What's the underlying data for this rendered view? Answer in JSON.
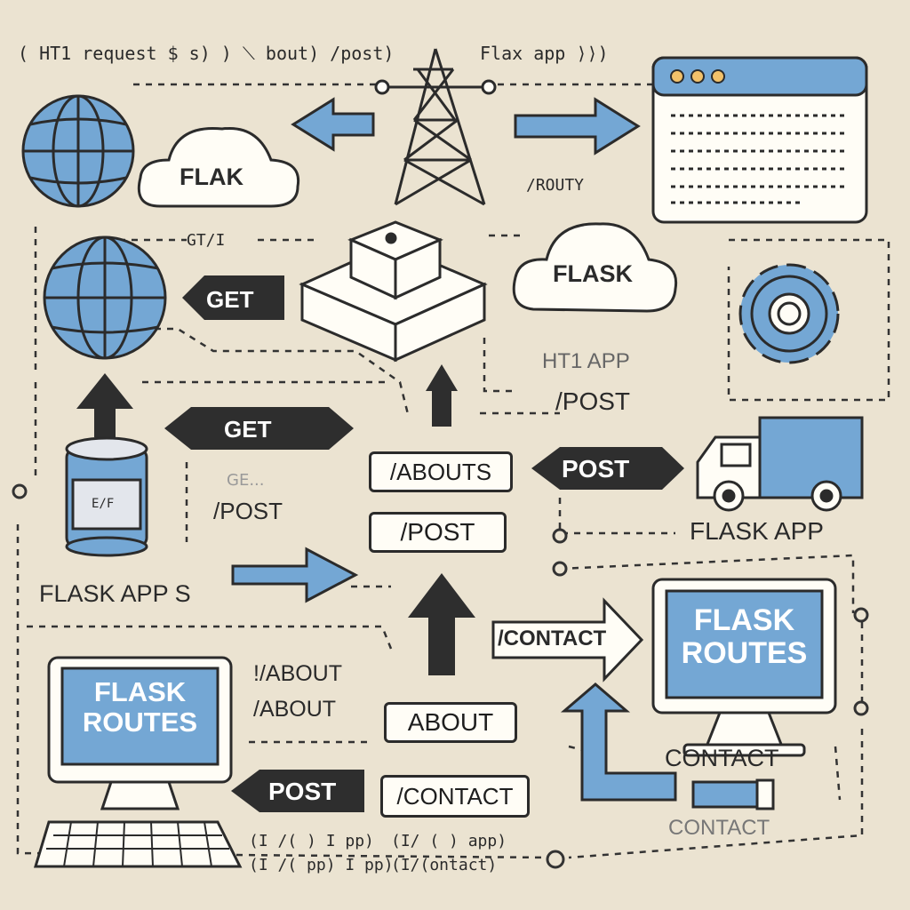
{
  "top": {
    "request_note": "( HT1 request $ s) ) ⟍ bout) /post)",
    "flask_app_note": "Flax app  ⟩⟩)"
  },
  "cloud_left": {
    "label": "FLAK"
  },
  "cloud_right": {
    "label": "FLASK"
  },
  "route_note": "/ROUTY",
  "gt_note": "GT/I",
  "arrows": {
    "get_top": "GET",
    "get_mid": "GET",
    "post_right": "POST",
    "post_bottom": "POST"
  },
  "ht_app_note": "HT1 APP",
  "post_note_right": "/POST",
  "post_note_left": "/POST",
  "get_faint": "GE...",
  "jar_label": "E/F",
  "badges": {
    "abouts": "/ABOUTS",
    "post": "/POST",
    "contact_arrow": "/CONTACT",
    "about": "ABOUT",
    "contact": "/CONTACT"
  },
  "flask_app_truck": "FLASK APP",
  "flask_app_left": "FLASK APP S",
  "monitor_right": {
    "line1": "FLASK",
    "line2": "ROUTES"
  },
  "monitor_left": {
    "line1": "FLASK",
    "line2": "ROUTES"
  },
  "about_notes": [
    "!/ABOUT",
    "/ABOUT"
  ],
  "contact_note": "CONTACT",
  "contact_faint": "CONTACT",
  "bottom_notes": {
    "line1_left": "(I /( ) I pp)",
    "line1_right": "(I/ ( ) app)",
    "line2_left": "(I /( pp) I pp)",
    "line2_right": "(I/(ontact)"
  },
  "colors": {
    "background": "#ebe3d1",
    "accent_blue": "#74a7d4",
    "outline": "#2b2b2b",
    "dark_arrow": "#2e2e2e",
    "paper": "#fffdf6"
  }
}
